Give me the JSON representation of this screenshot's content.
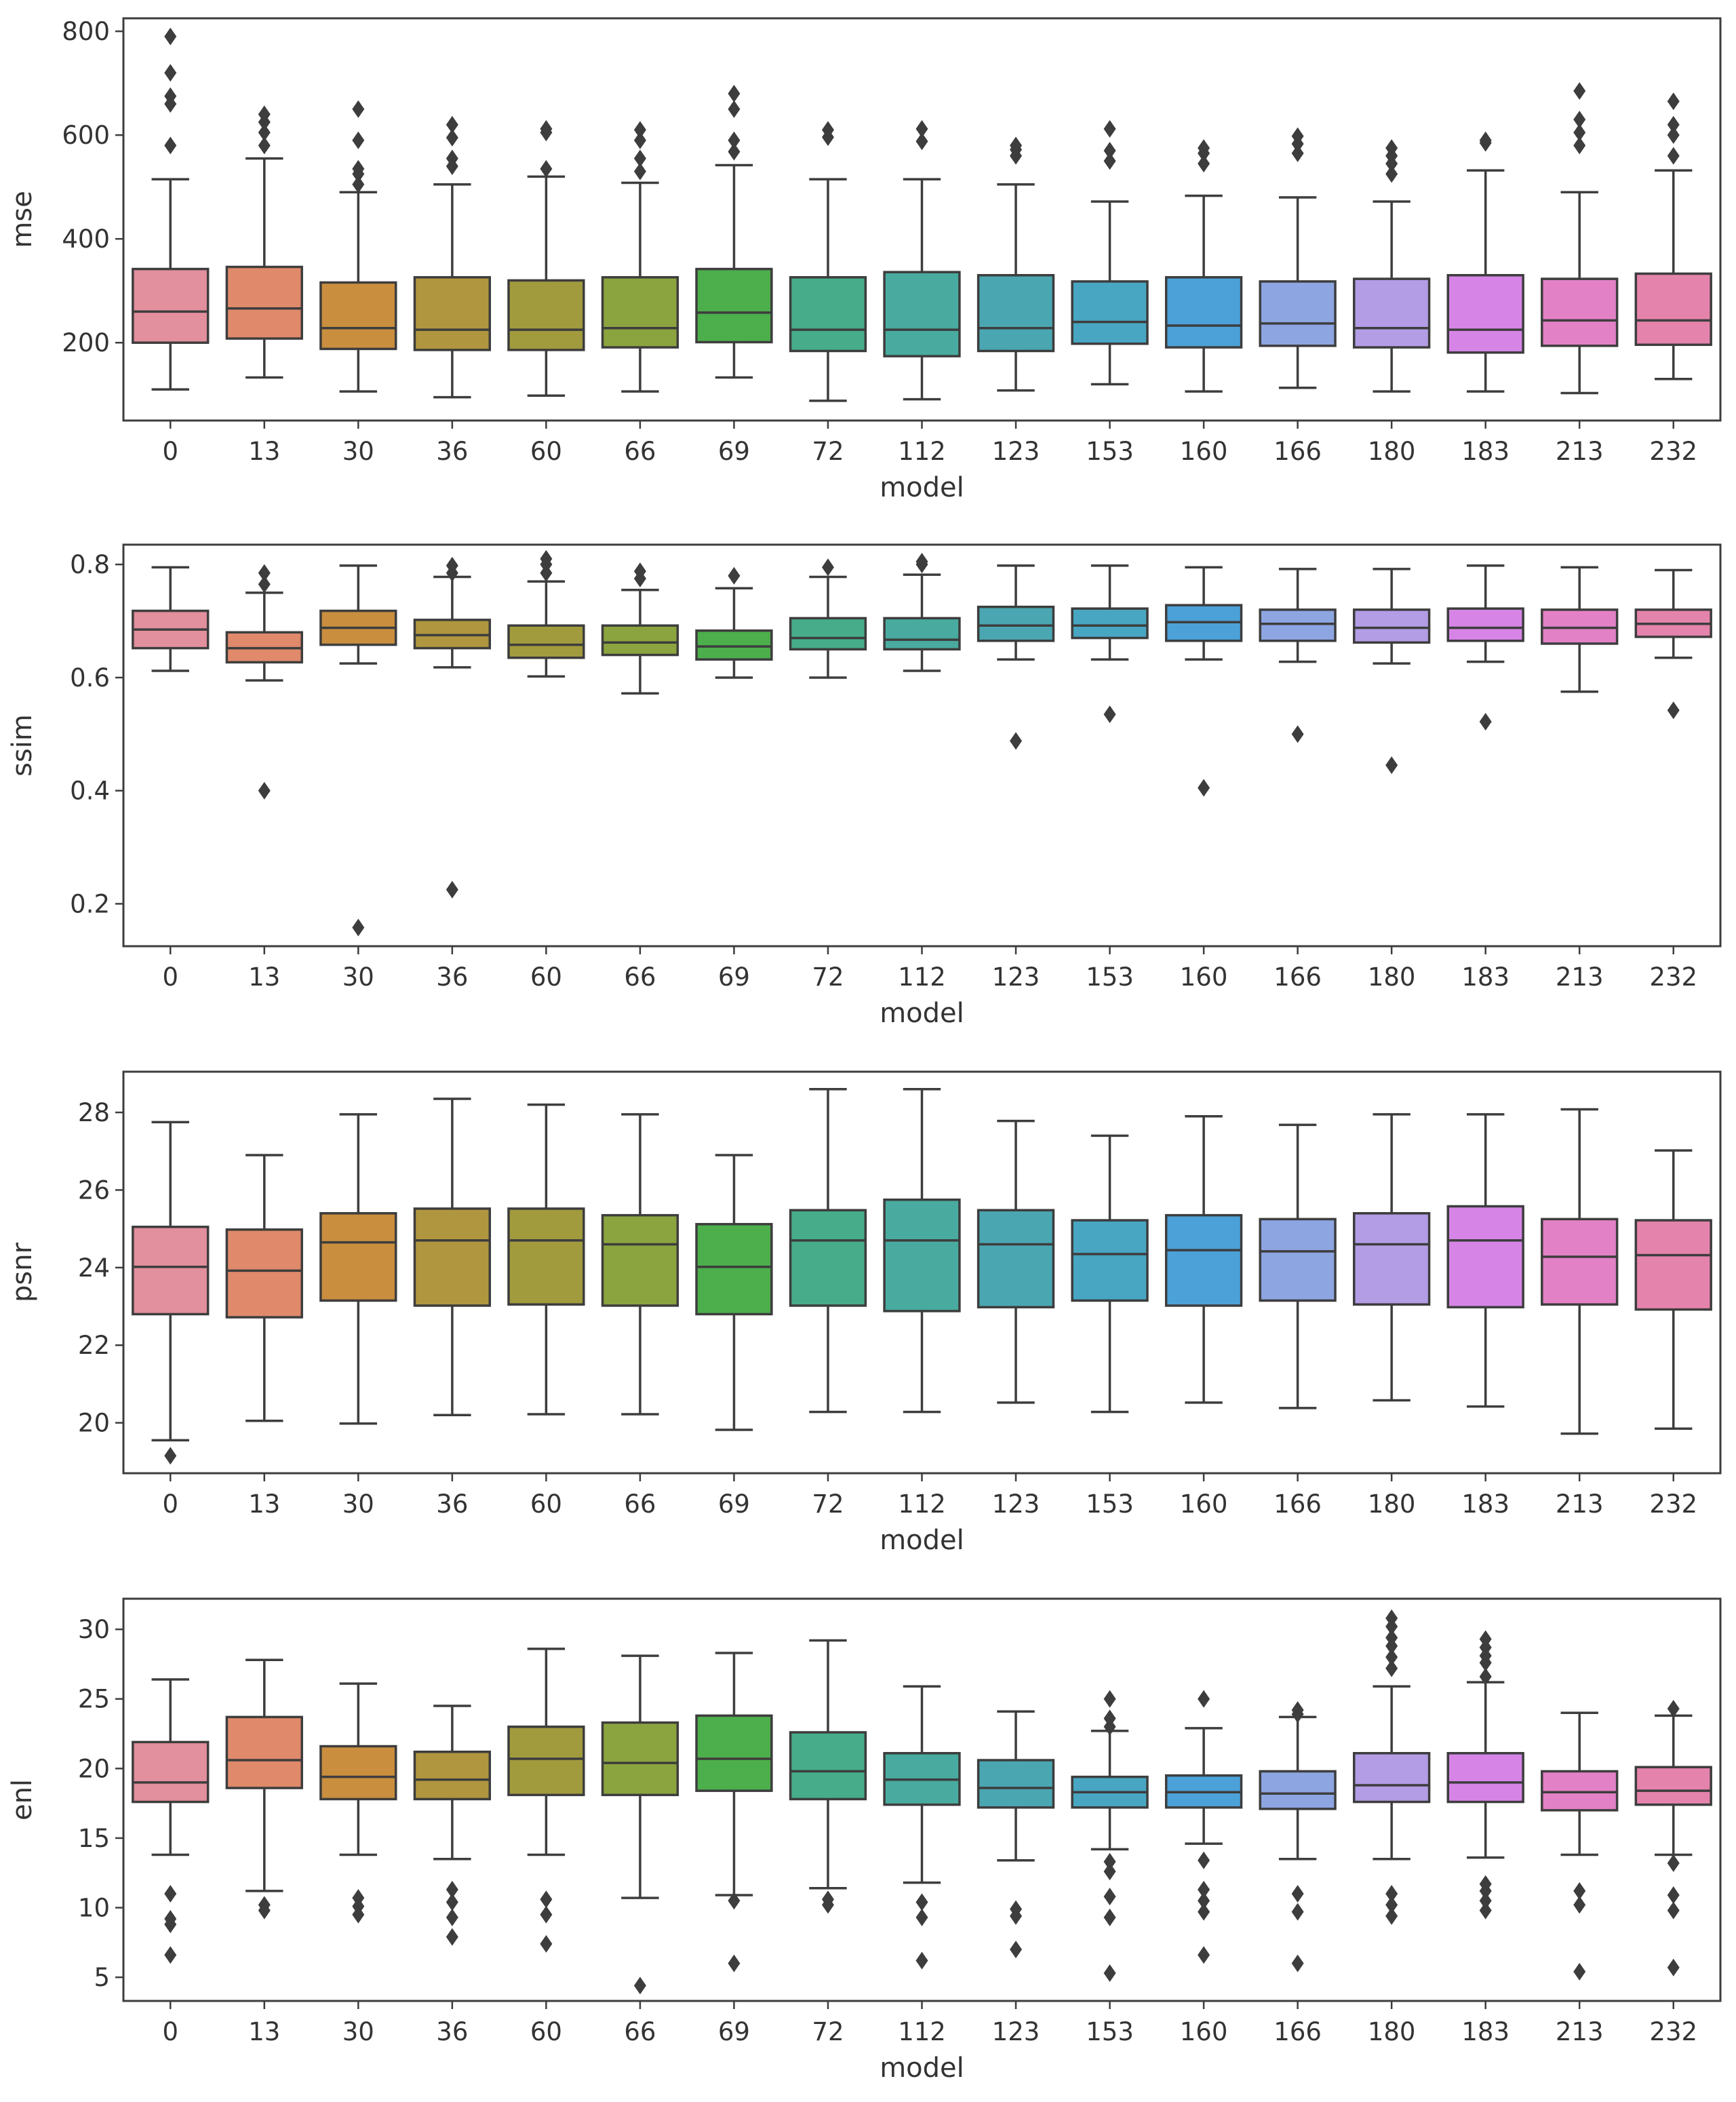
{
  "chart_data": [
    {
      "type": "boxplot",
      "ylabel": "mse",
      "xlabel": "model",
      "categories": [
        "0",
        "13",
        "30",
        "36",
        "60",
        "66",
        "69",
        "72",
        "112",
        "123",
        "153",
        "160",
        "166",
        "180",
        "183",
        "213",
        "232"
      ],
      "ylim": [
        50,
        825
      ],
      "yticks": [
        200,
        400,
        600,
        800
      ],
      "ytick_labels": [
        "200",
        "400",
        "600",
        "800"
      ],
      "boxes": [
        {
          "model": "0",
          "whislo": 110,
          "q1": 200,
          "med": 260,
          "q3": 342,
          "whishi": 515,
          "fliers": [
            580,
            660,
            675,
            720,
            790
          ]
        },
        {
          "model": "13",
          "whislo": 133,
          "q1": 208,
          "med": 266,
          "q3": 346,
          "whishi": 555,
          "fliers": [
            580,
            605,
            625,
            640
          ]
        },
        {
          "model": "30",
          "whislo": 106,
          "q1": 188,
          "med": 228,
          "q3": 316,
          "whishi": 490,
          "fliers": [
            505,
            525,
            535,
            590,
            650
          ]
        },
        {
          "model": "36",
          "whislo": 95,
          "q1": 186,
          "med": 225,
          "q3": 326,
          "whishi": 505,
          "fliers": [
            540,
            555,
            595,
            620
          ]
        },
        {
          "model": "60",
          "whislo": 98,
          "q1": 186,
          "med": 225,
          "q3": 320,
          "whishi": 520,
          "fliers": [
            535,
            605,
            612
          ]
        },
        {
          "model": "66",
          "whislo": 106,
          "q1": 191,
          "med": 228,
          "q3": 326,
          "whishi": 508,
          "fliers": [
            530,
            555,
            590,
            610
          ]
        },
        {
          "model": "69",
          "whislo": 133,
          "q1": 201,
          "med": 258,
          "q3": 342,
          "whishi": 542,
          "fliers": [
            568,
            590,
            650,
            680
          ]
        },
        {
          "model": "72",
          "whislo": 88,
          "q1": 184,
          "med": 225,
          "q3": 326,
          "whishi": 515,
          "fliers": [
            596,
            610
          ]
        },
        {
          "model": "112",
          "whislo": 91,
          "q1": 174,
          "med": 225,
          "q3": 336,
          "whishi": 515,
          "fliers": [
            588,
            612
          ]
        },
        {
          "model": "123",
          "whislo": 108,
          "q1": 184,
          "med": 228,
          "q3": 330,
          "whishi": 505,
          "fliers": [
            560,
            572,
            580
          ]
        },
        {
          "model": "153",
          "whislo": 120,
          "q1": 198,
          "med": 240,
          "q3": 318,
          "whishi": 472,
          "fliers": [
            550,
            570,
            612
          ]
        },
        {
          "model": "160",
          "whislo": 106,
          "q1": 191,
          "med": 233,
          "q3": 326,
          "whishi": 483,
          "fliers": [
            545,
            565,
            575
          ]
        },
        {
          "model": "166",
          "whislo": 113,
          "q1": 194,
          "med": 237,
          "q3": 318,
          "whishi": 480,
          "fliers": [
            565,
            583,
            598
          ]
        },
        {
          "model": "180",
          "whislo": 106,
          "q1": 191,
          "med": 228,
          "q3": 323,
          "whishi": 472,
          "fliers": [
            525,
            545,
            560,
            575
          ]
        },
        {
          "model": "183",
          "whislo": 106,
          "q1": 181,
          "med": 225,
          "q3": 330,
          "whishi": 532,
          "fliers": [
            585,
            590
          ]
        },
        {
          "model": "213",
          "whislo": 103,
          "q1": 194,
          "med": 243,
          "q3": 323,
          "whishi": 490,
          "fliers": [
            580,
            605,
            630,
            685
          ]
        },
        {
          "model": "232",
          "whislo": 130,
          "q1": 196,
          "med": 243,
          "q3": 333,
          "whishi": 532,
          "fliers": [
            560,
            600,
            620,
            665
          ]
        }
      ]
    },
    {
      "type": "boxplot",
      "ylabel": "ssim",
      "xlabel": "model",
      "categories": [
        "0",
        "13",
        "30",
        "36",
        "60",
        "66",
        "69",
        "72",
        "112",
        "123",
        "153",
        "160",
        "166",
        "180",
        "183",
        "213",
        "232"
      ],
      "ylim": [
        0.125,
        0.835
      ],
      "yticks": [
        0.2,
        0.4,
        0.6,
        0.8
      ],
      "ytick_labels": [
        "0.2",
        "0.4",
        "0.6",
        "0.8"
      ],
      "boxes": [
        {
          "model": "0",
          "whislo": 0.612,
          "q1": 0.652,
          "med": 0.685,
          "q3": 0.718,
          "whishi": 0.795,
          "fliers": []
        },
        {
          "model": "13",
          "whislo": 0.595,
          "q1": 0.627,
          "med": 0.652,
          "q3": 0.68,
          "whishi": 0.75,
          "fliers": [
            0.4,
            0.765,
            0.785
          ]
        },
        {
          "model": "30",
          "whislo": 0.625,
          "q1": 0.658,
          "med": 0.688,
          "q3": 0.718,
          "whishi": 0.798,
          "fliers": [
            0.158
          ]
        },
        {
          "model": "36",
          "whislo": 0.618,
          "q1": 0.652,
          "med": 0.675,
          "q3": 0.702,
          "whishi": 0.778,
          "fliers": [
            0.225,
            0.785,
            0.798
          ]
        },
        {
          "model": "60",
          "whislo": 0.602,
          "q1": 0.635,
          "med": 0.658,
          "q3": 0.692,
          "whishi": 0.77,
          "fliers": [
            0.785,
            0.8,
            0.81
          ]
        },
        {
          "model": "66",
          "whislo": 0.572,
          "q1": 0.64,
          "med": 0.662,
          "q3": 0.692,
          "whishi": 0.755,
          "fliers": [
            0.775,
            0.788
          ]
        },
        {
          "model": "69",
          "whislo": 0.6,
          "q1": 0.632,
          "med": 0.655,
          "q3": 0.683,
          "whishi": 0.758,
          "fliers": [
            0.78
          ]
        },
        {
          "model": "72",
          "whislo": 0.6,
          "q1": 0.65,
          "med": 0.67,
          "q3": 0.705,
          "whishi": 0.778,
          "fliers": [
            0.795
          ]
        },
        {
          "model": "112",
          "whislo": 0.612,
          "q1": 0.65,
          "med": 0.667,
          "q3": 0.705,
          "whishi": 0.782,
          "fliers": [
            0.8,
            0.805
          ]
        },
        {
          "model": "123",
          "whislo": 0.632,
          "q1": 0.665,
          "med": 0.692,
          "q3": 0.725,
          "whishi": 0.798,
          "fliers": [
            0.488
          ]
        },
        {
          "model": "153",
          "whislo": 0.632,
          "q1": 0.67,
          "med": 0.692,
          "q3": 0.722,
          "whishi": 0.798,
          "fliers": [
            0.535
          ]
        },
        {
          "model": "160",
          "whislo": 0.632,
          "q1": 0.665,
          "med": 0.698,
          "q3": 0.728,
          "whishi": 0.795,
          "fliers": [
            0.405
          ]
        },
        {
          "model": "166",
          "whislo": 0.628,
          "q1": 0.665,
          "med": 0.695,
          "q3": 0.72,
          "whishi": 0.792,
          "fliers": [
            0.5
          ]
        },
        {
          "model": "180",
          "whislo": 0.625,
          "q1": 0.662,
          "med": 0.688,
          "q3": 0.72,
          "whishi": 0.792,
          "fliers": [
            0.445
          ]
        },
        {
          "model": "183",
          "whislo": 0.628,
          "q1": 0.665,
          "med": 0.688,
          "q3": 0.722,
          "whishi": 0.798,
          "fliers": [
            0.522
          ]
        },
        {
          "model": "213",
          "whislo": 0.575,
          "q1": 0.66,
          "med": 0.688,
          "q3": 0.72,
          "whishi": 0.795,
          "fliers": []
        },
        {
          "model": "232",
          "whislo": 0.635,
          "q1": 0.672,
          "med": 0.695,
          "q3": 0.72,
          "whishi": 0.79,
          "fliers": [
            0.542
          ]
        }
      ]
    },
    {
      "type": "boxplot",
      "ylabel": "psnr",
      "xlabel": "model",
      "categories": [
        "0",
        "13",
        "30",
        "36",
        "60",
        "66",
        "69",
        "72",
        "112",
        "123",
        "153",
        "160",
        "166",
        "180",
        "183",
        "213",
        "232"
      ],
      "ylim": [
        18.7,
        29.05
      ],
      "yticks": [
        20,
        22,
        24,
        26,
        28
      ],
      "ytick_labels": [
        "20",
        "22",
        "24",
        "26",
        "28"
      ],
      "boxes": [
        {
          "model": "0",
          "whislo": 19.55,
          "q1": 22.8,
          "med": 24.02,
          "q3": 25.05,
          "whishi": 27.75,
          "fliers": [
            19.15
          ]
        },
        {
          "model": "13",
          "whislo": 20.05,
          "q1": 22.72,
          "med": 23.92,
          "q3": 24.98,
          "whishi": 26.9,
          "fliers": []
        },
        {
          "model": "30",
          "whislo": 19.98,
          "q1": 23.15,
          "med": 24.65,
          "q3": 25.4,
          "whishi": 27.95,
          "fliers": []
        },
        {
          "model": "36",
          "whislo": 20.2,
          "q1": 23.02,
          "med": 24.7,
          "q3": 25.52,
          "whishi": 28.35,
          "fliers": []
        },
        {
          "model": "60",
          "whislo": 20.22,
          "q1": 23.05,
          "med": 24.7,
          "q3": 25.52,
          "whishi": 28.2,
          "fliers": []
        },
        {
          "model": "66",
          "whislo": 20.22,
          "q1": 23.02,
          "med": 24.6,
          "q3": 25.35,
          "whishi": 27.95,
          "fliers": []
        },
        {
          "model": "69",
          "whislo": 19.82,
          "q1": 22.8,
          "med": 24.02,
          "q3": 25.12,
          "whishi": 26.9,
          "fliers": []
        },
        {
          "model": "72",
          "whislo": 20.28,
          "q1": 23.02,
          "med": 24.7,
          "q3": 25.48,
          "whishi": 28.6,
          "fliers": []
        },
        {
          "model": "112",
          "whislo": 20.28,
          "q1": 22.88,
          "med": 24.7,
          "q3": 25.75,
          "whishi": 28.6,
          "fliers": []
        },
        {
          "model": "123",
          "whislo": 20.52,
          "q1": 22.98,
          "med": 24.6,
          "q3": 25.48,
          "whishi": 27.78,
          "fliers": []
        },
        {
          "model": "153",
          "whislo": 20.28,
          "q1": 23.15,
          "med": 24.35,
          "q3": 25.22,
          "whishi": 27.4,
          "fliers": []
        },
        {
          "model": "160",
          "whislo": 20.52,
          "q1": 23.02,
          "med": 24.45,
          "q3": 25.35,
          "whishi": 27.9,
          "fliers": []
        },
        {
          "model": "166",
          "whislo": 20.38,
          "q1": 23.15,
          "med": 24.42,
          "q3": 25.25,
          "whishi": 27.68,
          "fliers": []
        },
        {
          "model": "180",
          "whislo": 20.58,
          "q1": 23.05,
          "med": 24.6,
          "q3": 25.4,
          "whishi": 27.95,
          "fliers": []
        },
        {
          "model": "183",
          "whislo": 20.42,
          "q1": 22.98,
          "med": 24.7,
          "q3": 25.58,
          "whishi": 27.95,
          "fliers": []
        },
        {
          "model": "213",
          "whislo": 19.72,
          "q1": 23.05,
          "med": 24.28,
          "q3": 25.25,
          "whishi": 28.08,
          "fliers": []
        },
        {
          "model": "232",
          "whislo": 19.85,
          "q1": 22.92,
          "med": 24.32,
          "q3": 25.22,
          "whishi": 27.02,
          "fliers": []
        }
      ]
    },
    {
      "type": "boxplot",
      "ylabel": "enl",
      "xlabel": "model",
      "categories": [
        "0",
        "13",
        "30",
        "36",
        "60",
        "66",
        "69",
        "72",
        "112",
        "123",
        "153",
        "160",
        "166",
        "180",
        "183",
        "213",
        "232"
      ],
      "ylim": [
        3.3,
        32.2
      ],
      "yticks": [
        5,
        10,
        15,
        20,
        25,
        30
      ],
      "ytick_labels": [
        "5",
        "10",
        "15",
        "20",
        "25",
        "30"
      ],
      "boxes": [
        {
          "model": "0",
          "whislo": 13.8,
          "q1": 17.6,
          "med": 19.0,
          "q3": 21.9,
          "whishi": 26.4,
          "fliers": [
            6.6,
            8.8,
            9.2,
            11.0
          ]
        },
        {
          "model": "13",
          "whislo": 11.2,
          "q1": 18.6,
          "med": 20.6,
          "q3": 23.7,
          "whishi": 27.8,
          "fliers": [
            9.8,
            10.2
          ]
        },
        {
          "model": "30",
          "whislo": 13.8,
          "q1": 17.8,
          "med": 19.4,
          "q3": 21.6,
          "whishi": 26.1,
          "fliers": [
            9.5,
            10.1,
            10.7
          ]
        },
        {
          "model": "36",
          "whislo": 13.5,
          "q1": 17.8,
          "med": 19.2,
          "q3": 21.2,
          "whishi": 24.5,
          "fliers": [
            7.9,
            9.3,
            10.4,
            11.3
          ]
        },
        {
          "model": "60",
          "whislo": 13.8,
          "q1": 18.1,
          "med": 20.7,
          "q3": 23.0,
          "whishi": 28.6,
          "fliers": [
            7.4,
            9.5,
            10.6
          ]
        },
        {
          "model": "66",
          "whislo": 10.7,
          "q1": 18.1,
          "med": 20.4,
          "q3": 23.3,
          "whishi": 28.1,
          "fliers": [
            4.4
          ]
        },
        {
          "model": "69",
          "whislo": 10.9,
          "q1": 18.4,
          "med": 20.7,
          "q3": 23.8,
          "whishi": 28.3,
          "fliers": [
            6.0,
            10.5
          ]
        },
        {
          "model": "72",
          "whislo": 11.4,
          "q1": 17.8,
          "med": 19.8,
          "q3": 22.6,
          "whishi": 29.2,
          "fliers": [
            10.2,
            10.6
          ]
        },
        {
          "model": "112",
          "whislo": 11.8,
          "q1": 17.4,
          "med": 19.2,
          "q3": 21.1,
          "whishi": 25.9,
          "fliers": [
            6.2,
            9.3,
            10.4
          ]
        },
        {
          "model": "123",
          "whislo": 13.4,
          "q1": 17.2,
          "med": 18.6,
          "q3": 20.6,
          "whishi": 24.1,
          "fliers": [
            7.0,
            9.4,
            9.9
          ]
        },
        {
          "model": "153",
          "whislo": 14.2,
          "q1": 17.2,
          "med": 18.3,
          "q3": 19.4,
          "whishi": 22.7,
          "fliers": [
            5.3,
            9.3,
            10.8,
            12.6,
            13.3,
            23.0,
            23.6,
            25.0
          ]
        },
        {
          "model": "160",
          "whislo": 14.6,
          "q1": 17.2,
          "med": 18.3,
          "q3": 19.5,
          "whishi": 22.9,
          "fliers": [
            6.6,
            9.7,
            10.5,
            11.3,
            13.4,
            25.0
          ]
        },
        {
          "model": "166",
          "whislo": 13.5,
          "q1": 17.1,
          "med": 18.2,
          "q3": 19.8,
          "whishi": 23.7,
          "fliers": [
            6.0,
            9.7,
            11.0,
            23.9,
            24.2
          ]
        },
        {
          "model": "180",
          "whislo": 13.5,
          "q1": 17.6,
          "med": 18.8,
          "q3": 21.1,
          "whishi": 25.9,
          "fliers": [
            9.4,
            10.2,
            11.0,
            27.2,
            28.0,
            28.8,
            29.4,
            30.2,
            30.8
          ]
        },
        {
          "model": "183",
          "whislo": 13.6,
          "q1": 17.6,
          "med": 19.0,
          "q3": 21.1,
          "whishi": 26.2,
          "fliers": [
            9.8,
            10.5,
            11.2,
            11.7,
            26.6,
            27.6,
            28.1,
            28.7,
            29.3
          ]
        },
        {
          "model": "213",
          "whislo": 13.8,
          "q1": 17.0,
          "med": 18.3,
          "q3": 19.8,
          "whishi": 24.0,
          "fliers": [
            5.4,
            10.2,
            11.2
          ]
        },
        {
          "model": "232",
          "whislo": 13.8,
          "q1": 17.4,
          "med": 18.4,
          "q3": 20.1,
          "whishi": 23.8,
          "fliers": [
            5.7,
            9.8,
            10.9,
            13.2,
            24.3
          ]
        }
      ]
    }
  ],
  "palette": [
    "#e28f9e",
    "#e0896b",
    "#c98e3e",
    "#b0963e",
    "#a19b3e",
    "#8ba43f",
    "#4dae4c",
    "#46ac8a",
    "#49ab9f",
    "#4aa7b1",
    "#48a6c2",
    "#4ba1d8",
    "#8da5e1",
    "#b39de5",
    "#d685e6",
    "#e381c6",
    "#e483ab"
  ],
  "edge_color": "#3d3d3d"
}
